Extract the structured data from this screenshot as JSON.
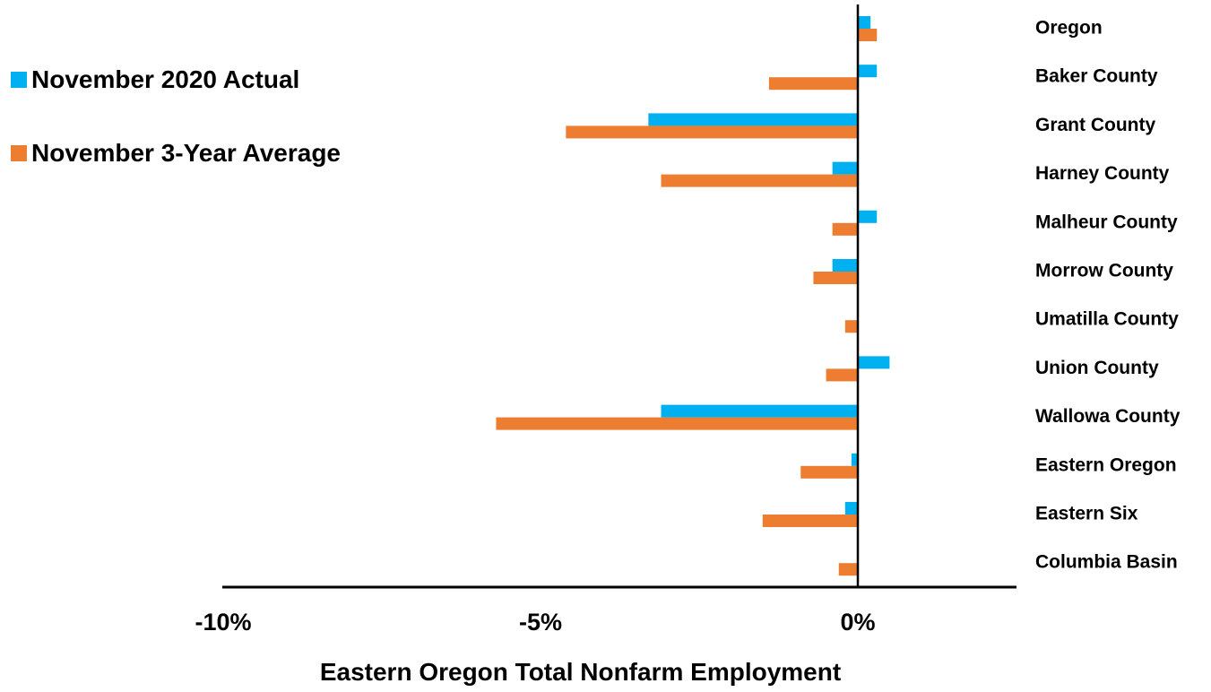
{
  "chart_data": {
    "type": "bar",
    "orientation": "horizontal",
    "categories": [
      "Oregon",
      "Baker County",
      "Grant County",
      "Harney County",
      "Malheur County",
      "Morrow County",
      "Umatilla County",
      "Union County",
      "Wallowa County",
      "Eastern Oregon",
      "Eastern Six",
      "Columbia Basin"
    ],
    "series": [
      {
        "name": "November 2020 Actual",
        "color": "#00B0F0",
        "values": [
          0.2,
          0.3,
          -3.3,
          -0.4,
          0.3,
          -0.4,
          0.0,
          0.5,
          -3.1,
          -0.1,
          -0.2,
          0.0
        ]
      },
      {
        "name": "November 3-Year Average",
        "color": "#ED7D31",
        "values": [
          0.3,
          -1.4,
          -4.6,
          -3.1,
          -0.4,
          -0.7,
          -0.2,
          -0.5,
          -5.7,
          -0.9,
          -1.5,
          -0.3
        ]
      }
    ],
    "xlabel": "Eastern Oregon Total Nonfarm Employment",
    "ylabel": "",
    "xlim": [
      -10,
      2.5
    ],
    "xticks": [
      -10,
      -5,
      0
    ],
    "xtick_labels": [
      "-10%",
      "-5%",
      "0%"
    ],
    "grid": false,
    "legend_position": "top-left"
  }
}
